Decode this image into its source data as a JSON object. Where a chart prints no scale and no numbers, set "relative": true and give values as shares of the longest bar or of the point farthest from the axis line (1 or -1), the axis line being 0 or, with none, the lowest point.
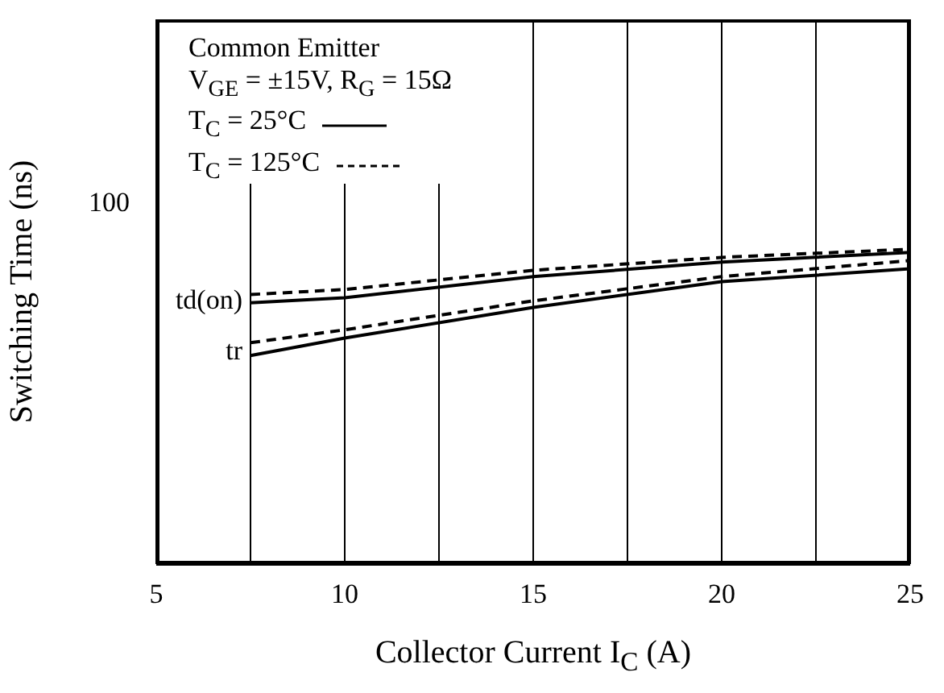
{
  "chart_data": {
    "type": "line",
    "relative": true,
    "xlabel": "Collector Current  I$_{C}$ (A)",
    "ylabel": "Switching Time  (ns)",
    "x": [
      7.5,
      10,
      15,
      20,
      25
    ],
    "xlim": [
      5,
      25
    ],
    "xticks": [
      5,
      {
        "value": 7.5,
        "label": null
      },
      10,
      {
        "value": 12.5,
        "label": null
      },
      15,
      {
        "value": 17.5,
        "label": null
      },
      20,
      {
        "value": 22.5,
        "label": null
      },
      25
    ],
    "grid": "x",
    "marker": "none",
    "series": [
      {
        "color": "#000000",
        "line_style": "solid",
        "values": [
          0.83,
          0.846,
          0.913,
          0.959,
          0.99
        ]
      },
      {
        "color": "#000000",
        "line_style": "dashed",
        "values": [
          0.856,
          0.872,
          0.933,
          0.974,
          1
        ]
      },
      {
        "color": "#000000",
        "line_style": "solid",
        "values": [
          0.662,
          0.718,
          0.815,
          0.897,
          0.938
        ]
      },
      {
        "color": "#000000",
        "line_style": "dashed",
        "values": [
          0.703,
          0.744,
          0.836,
          0.913,
          0.964
        ]
      }
    ],
    "annotations": [
      "Common Emitter",
      "V$_{GE}$ = ±15V, R$_{G}$ = 15Ω",
      "T$_{C}$ = 25°C",
      "T$_{C}$ = 125°C",
      "100",
      {
        "text": "td(on)",
        "x": 7.5,
        "y": 0.843
      },
      {
        "text": "tr",
        "x": 7.5,
        "y": 0.682
      }
    ]
  }
}
